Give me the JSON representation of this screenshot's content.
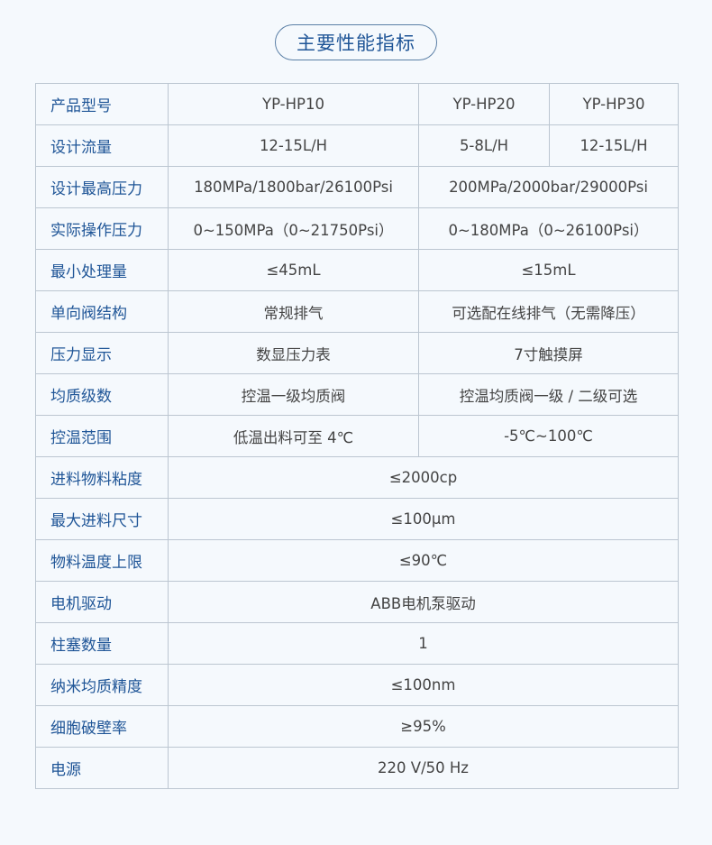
{
  "title": "主要性能指标",
  "rows": [
    {
      "label": "产品型号",
      "cells": [
        "YP-HP10",
        "YP-HP20",
        "YP-HP30"
      ]
    },
    {
      "label": "设计流量",
      "cells": [
        "12-15L/H",
        "5-8L/H",
        "12-15L/H"
      ]
    },
    {
      "label": "设计最高压力",
      "cells": [
        "180MPa/1800bar/26100Psi",
        "200MPa/2000bar/29000Psi"
      ]
    },
    {
      "label": "实际操作压力",
      "cells": [
        "0~150MPa（0~21750Psi）",
        "0~180MPa（0~26100Psi）"
      ]
    },
    {
      "label": "最小处理量",
      "cells": [
        "≤45mL",
        "≤15mL"
      ]
    },
    {
      "label": "单向阀结构",
      "cells": [
        "常规排气",
        "可选配在线排气（无需降压）"
      ]
    },
    {
      "label": "压力显示",
      "cells": [
        "数显压力表",
        "7寸触摸屏"
      ]
    },
    {
      "label": "均质级数",
      "cells": [
        "控温一级均质阀",
        "控温均质阀一级 / 二级可选"
      ]
    },
    {
      "label": "控温范围",
      "cells": [
        "低温出料可至 4℃",
        "-5℃~100℃"
      ]
    },
    {
      "label": "进料物料粘度",
      "cells": [
        "≤2000cp"
      ]
    },
    {
      "label": "最大进料尺寸",
      "cells": [
        "≤100μm"
      ]
    },
    {
      "label": "物料温度上限",
      "cells": [
        "≤90℃"
      ]
    },
    {
      "label": "电机驱动",
      "cells": [
        "ABB电机泵驱动"
      ]
    },
    {
      "label": "柱塞数量",
      "cells": [
        "1"
      ]
    },
    {
      "label": "纳米均质精度",
      "cells": [
        "≤100nm"
      ]
    },
    {
      "label": "细胞破壁率",
      "cells": [
        "≥95%"
      ]
    },
    {
      "label": "电源",
      "cells": [
        "220 V/50 Hz"
      ]
    }
  ]
}
